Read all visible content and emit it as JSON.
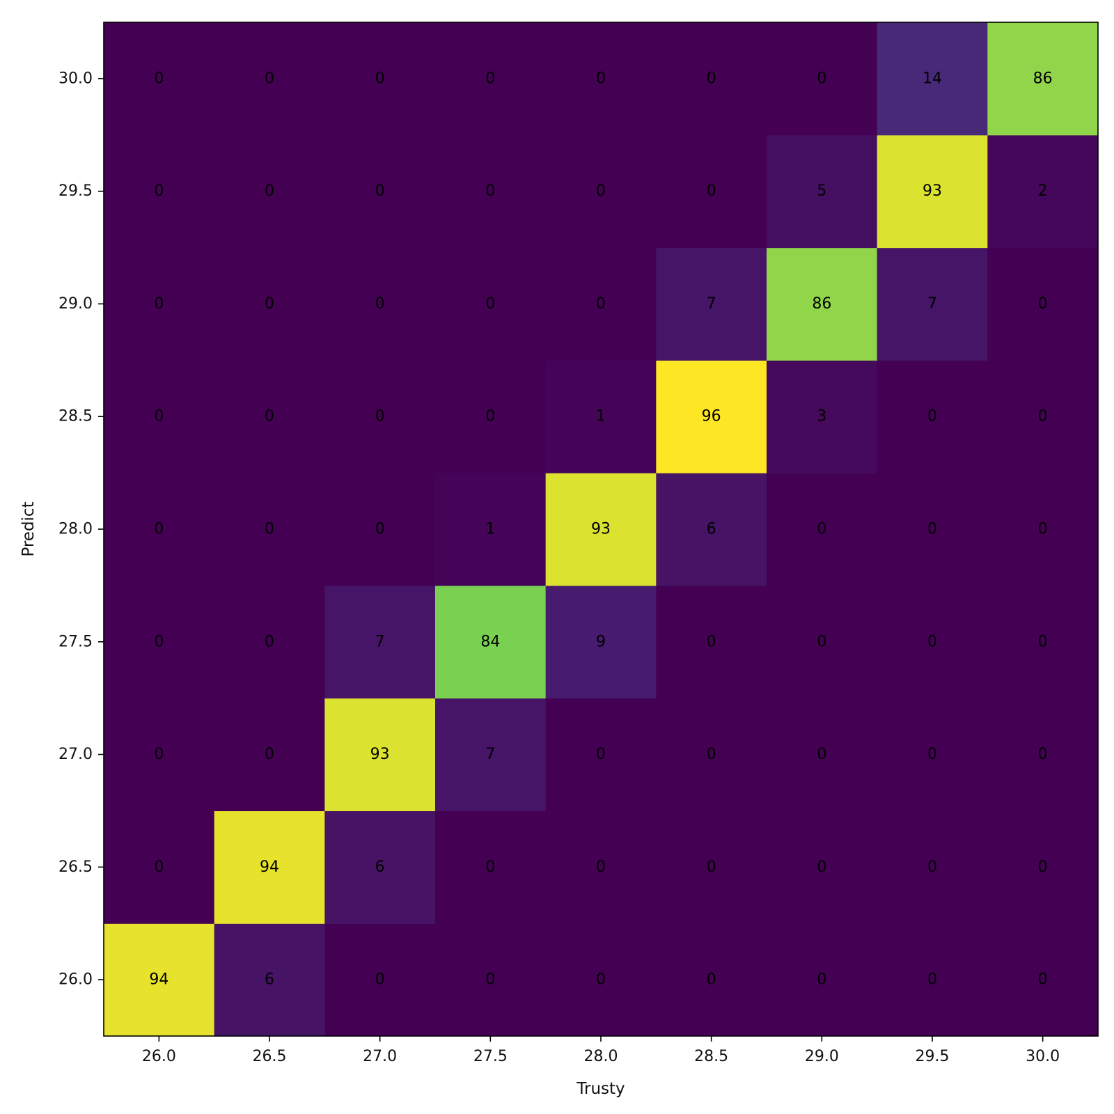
{
  "chart_data": {
    "type": "heatmap",
    "x_categories": [
      "26.0",
      "26.5",
      "27.0",
      "27.5",
      "28.0",
      "28.5",
      "29.0",
      "29.5",
      "30.0"
    ],
    "y_categories": [
      "26.0",
      "26.5",
      "27.0",
      "27.5",
      "28.0",
      "28.5",
      "29.0",
      "29.5",
      "30.0"
    ],
    "values": [
      [
        94,
        6,
        0,
        0,
        0,
        0,
        0,
        0,
        0
      ],
      [
        0,
        94,
        6,
        0,
        0,
        0,
        0,
        0,
        0
      ],
      [
        0,
        0,
        93,
        7,
        0,
        0,
        0,
        0,
        0
      ],
      [
        0,
        0,
        7,
        84,
        9,
        0,
        0,
        0,
        0
      ],
      [
        0,
        0,
        0,
        1,
        93,
        6,
        0,
        0,
        0
      ],
      [
        0,
        0,
        0,
        0,
        1,
        96,
        3,
        0,
        0
      ],
      [
        0,
        0,
        0,
        0,
        0,
        7,
        86,
        7,
        0
      ],
      [
        0,
        0,
        0,
        0,
        0,
        0,
        5,
        93,
        2
      ],
      [
        0,
        0,
        0,
        0,
        0,
        0,
        0,
        14,
        86
      ]
    ],
    "xlabel": "Trusty",
    "ylabel": "Predict",
    "value_range": [
      0,
      96
    ],
    "colormap": "viridis",
    "grid": false,
    "legend": "none"
  }
}
